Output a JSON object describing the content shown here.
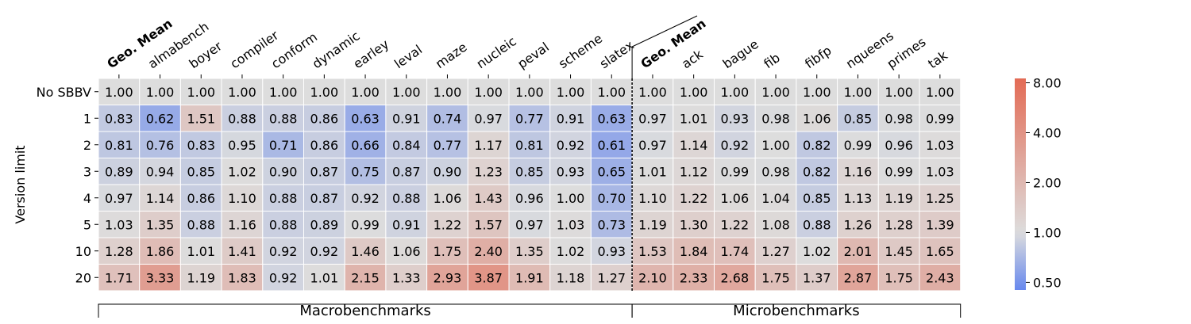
{
  "chart_data": {
    "type": "heatmap",
    "ylabel": "Version limit",
    "rows": [
      "No SBBV",
      "1",
      "2",
      "3",
      "4",
      "5",
      "10",
      "20"
    ],
    "columns": [
      "Geo. Mean",
      "almabench",
      "boyer",
      "compiler",
      "conform",
      "dynamic",
      "earley",
      "leval",
      "maze",
      "nucleic",
      "peval",
      "scheme",
      "slatex",
      "Geo. Mean",
      "ack",
      "bague",
      "fib",
      "fibfp",
      "nqueens",
      "primes",
      "tak"
    ],
    "bold_columns": [
      0,
      13
    ],
    "groups": [
      {
        "label": "Macrobenchmarks",
        "start": 0,
        "end": 12
      },
      {
        "label": "Microbenchmarks",
        "start": 13,
        "end": 20
      }
    ],
    "values": [
      [
        1.0,
        1.0,
        1.0,
        1.0,
        1.0,
        1.0,
        1.0,
        1.0,
        1.0,
        1.0,
        1.0,
        1.0,
        1.0,
        1.0,
        1.0,
        1.0,
        1.0,
        1.0,
        1.0,
        1.0,
        1.0
      ],
      [
        0.83,
        0.62,
        1.51,
        0.88,
        0.88,
        0.86,
        0.63,
        0.91,
        0.74,
        0.97,
        0.77,
        0.91,
        0.63,
        0.97,
        1.01,
        0.93,
        0.98,
        1.06,
        0.85,
        0.98,
        0.99
      ],
      [
        0.81,
        0.76,
        0.83,
        0.95,
        0.71,
        0.86,
        0.66,
        0.84,
        0.77,
        1.17,
        0.81,
        0.92,
        0.61,
        0.97,
        1.14,
        0.92,
        1.0,
        0.82,
        0.99,
        0.96,
        1.03
      ],
      [
        0.89,
        0.94,
        0.85,
        1.02,
        0.9,
        0.87,
        0.75,
        0.87,
        0.9,
        1.23,
        0.85,
        0.93,
        0.65,
        1.01,
        1.12,
        0.99,
        0.98,
        0.82,
        1.16,
        0.99,
        1.03
      ],
      [
        0.97,
        1.14,
        0.86,
        1.1,
        0.88,
        0.87,
        0.92,
        0.88,
        1.06,
        1.43,
        0.96,
        1.0,
        0.7,
        1.1,
        1.22,
        1.06,
        1.04,
        0.85,
        1.13,
        1.19,
        1.25
      ],
      [
        1.03,
        1.35,
        0.88,
        1.16,
        0.88,
        0.89,
        0.99,
        0.91,
        1.22,
        1.57,
        0.97,
        1.03,
        0.73,
        1.19,
        1.3,
        1.22,
        1.08,
        0.88,
        1.26,
        1.28,
        1.39
      ],
      [
        1.28,
        1.86,
        1.01,
        1.41,
        0.92,
        0.92,
        1.46,
        1.06,
        1.75,
        2.4,
        1.35,
        1.02,
        0.93,
        1.53,
        1.84,
        1.74,
        1.27,
        1.02,
        2.01,
        1.45,
        1.65
      ],
      [
        1.71,
        3.33,
        1.19,
        1.83,
        0.92,
        1.01,
        2.15,
        1.33,
        2.93,
        3.87,
        1.91,
        1.18,
        1.27,
        2.1,
        2.33,
        2.68,
        1.75,
        1.37,
        2.87,
        1.75,
        2.43
      ]
    ],
    "colorbar": {
      "scale": "log",
      "range": [
        0.45,
        8.5
      ],
      "ticks": [
        "0.50",
        "1.00",
        "2.00",
        "4.00",
        "8.00"
      ],
      "tick_values": [
        0.5,
        1,
        2,
        4,
        8
      ],
      "colormap": "coolwarm",
      "colors": {
        "low": "#6788ee",
        "mid": "#dddddd",
        "high": "#e36b55"
      }
    },
    "grid": true,
    "legend": "colorbar-right"
  }
}
